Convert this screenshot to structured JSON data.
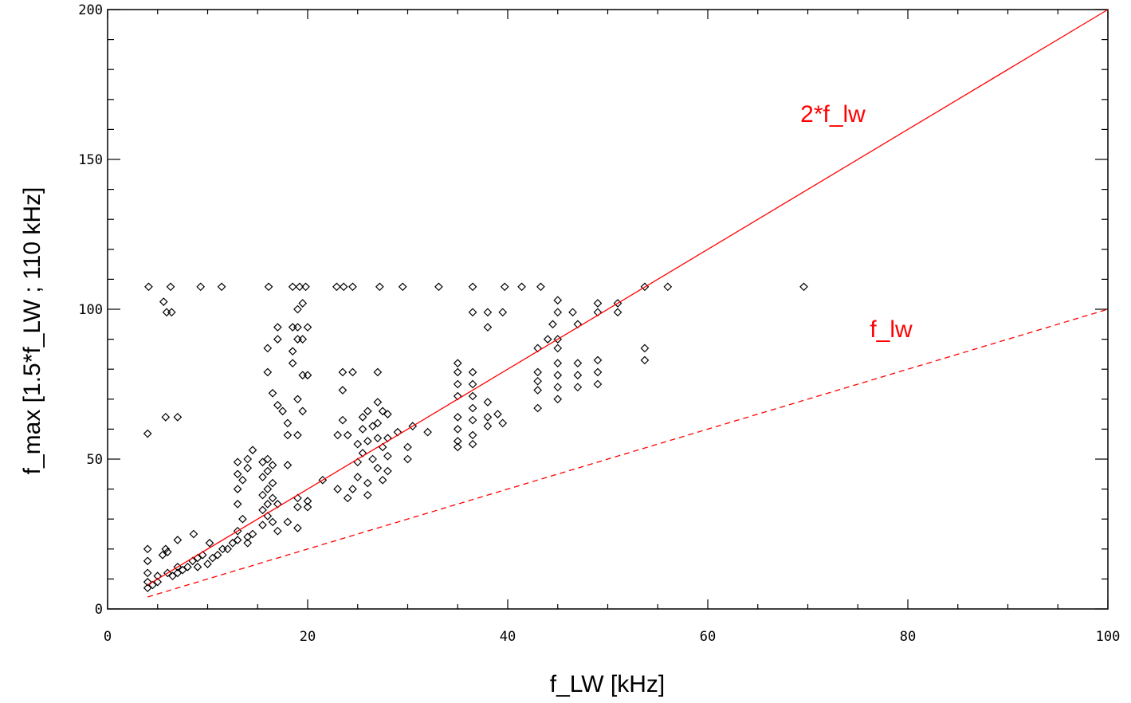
{
  "chart_data": {
    "type": "scatter",
    "xlabel": "f_LW [kHz]",
    "ylabel": "f_max [1.5*f_LW ; 110 kHz]",
    "xlim": [
      0,
      100
    ],
    "ylim": [
      0,
      200
    ],
    "xticks": [
      0,
      20,
      40,
      60,
      80,
      100
    ],
    "yticks": [
      0,
      50,
      100,
      150,
      200
    ],
    "xminorticks": [
      5,
      10,
      15,
      25,
      30,
      35,
      45,
      50,
      55,
      65,
      70,
      75,
      85,
      90,
      95
    ],
    "yminorticks": [
      10,
      20,
      30,
      40,
      60,
      70,
      80,
      90,
      110,
      120,
      130,
      140,
      160,
      170,
      180,
      190
    ],
    "series": [
      {
        "type": "scatter",
        "marker": "diamond",
        "color": "#000000",
        "x": [
          4.1,
          6.3,
          9.3,
          11.4,
          16.1,
          18.5,
          19.2,
          19.8,
          22.9,
          23.6,
          24.5,
          27.2,
          29.5,
          33.1,
          36.5,
          39.7,
          41.4,
          43.3,
          53.7,
          56,
          69.6,
          4,
          5.6,
          5.9,
          6.4,
          5.8,
          7,
          4,
          4,
          4,
          4,
          4,
          4.5,
          5,
          5,
          5.5,
          5.8,
          6,
          6,
          6.5,
          7,
          7,
          7,
          7.5,
          8,
          8.6,
          8.5,
          9,
          9,
          9.5,
          10,
          10.2,
          10.5,
          11,
          11.5,
          12,
          12.5,
          13,
          13,
          14,
          14,
          13,
          13,
          13,
          13,
          13.5,
          13.5,
          14,
          14,
          14.5,
          14.5,
          15.5,
          15.5,
          15.5,
          15.5,
          15.5,
          16,
          16,
          16,
          16,
          16,
          16.5,
          16.5,
          16.5,
          16.5,
          17,
          17,
          16,
          16,
          16.5,
          17,
          17,
          17,
          17.5,
          18,
          18,
          18,
          18,
          19,
          19,
          19,
          18.5,
          18.5,
          18.5,
          19,
          19,
          19,
          19.5,
          19.5,
          19.5,
          20,
          20,
          19,
          19.5,
          19,
          20,
          20,
          21.5,
          23,
          23,
          23.5,
          23.5,
          23.5,
          24,
          24,
          24.5,
          24.5,
          25,
          25,
          25,
          25.5,
          25.5,
          25.5,
          26,
          26,
          26,
          26,
          26.5,
          26.5,
          27,
          27,
          27,
          27,
          27,
          27.5,
          27.5,
          27.5,
          28,
          28,
          28,
          28,
          29,
          30,
          30,
          30.5,
          32,
          35,
          35,
          35,
          35,
          35,
          35,
          35,
          35,
          36.5,
          36.5,
          36.5,
          36.5,
          36.5,
          36.5,
          36.5,
          36.5,
          38,
          38,
          38,
          38,
          38,
          39,
          39.5,
          39.5,
          43,
          43,
          43,
          43,
          43,
          44.5,
          45,
          45,
          45,
          45,
          45,
          45,
          45,
          45,
          46.5,
          47,
          47,
          47,
          47,
          49,
          49,
          49,
          49,
          49,
          51,
          51,
          53.7,
          53.7,
          44
        ],
        "values": [
          107.5,
          107.5,
          107.5,
          107.5,
          107.5,
          107.5,
          107.5,
          107.5,
          107.5,
          107.5,
          107.5,
          107.5,
          107.5,
          107.5,
          107.5,
          107.5,
          107.5,
          107.5,
          107.5,
          107.5,
          107.5,
          58.5,
          102.5,
          99,
          99,
          64,
          64,
          20,
          16,
          12,
          9,
          7,
          8,
          9,
          11,
          18,
          20,
          19,
          12,
          11,
          12,
          23,
          14,
          13,
          14,
          25,
          16,
          17,
          14,
          18,
          15,
          22,
          17,
          18,
          20,
          20,
          22,
          23,
          26,
          22,
          24,
          35,
          40,
          45,
          49,
          30,
          43,
          47,
          50,
          53,
          25,
          28,
          33,
          38,
          44,
          49,
          31,
          35,
          40,
          46,
          50,
          29,
          37,
          42,
          48,
          35,
          26,
          87,
          79,
          72,
          68,
          94,
          90,
          66,
          62,
          58,
          48,
          29,
          34,
          27,
          37,
          94,
          86,
          82,
          100,
          94,
          90,
          102,
          90,
          78,
          94,
          78,
          70,
          66,
          58,
          36,
          34,
          43,
          40,
          58,
          79,
          73,
          63,
          37,
          58,
          79,
          40,
          55,
          49,
          44,
          64,
          60,
          52,
          66,
          56,
          42,
          38,
          61,
          50,
          79,
          69,
          62,
          57,
          47,
          66,
          54,
          43,
          65,
          57,
          51,
          46,
          59,
          54,
          50,
          61,
          59,
          82,
          79,
          75,
          71,
          64,
          60,
          56,
          54,
          79,
          75,
          71,
          67,
          63,
          58,
          55,
          99,
          99,
          94,
          69,
          64,
          61,
          65,
          99,
          62,
          87,
          79,
          76,
          73,
          67,
          95,
          103,
          99,
          90,
          87,
          82,
          78,
          74,
          70,
          99,
          95,
          82,
          78,
          74,
          102,
          99,
          83,
          79,
          75,
          102,
          99,
          87,
          83,
          90
        ]
      },
      {
        "type": "line",
        "name": "2*f_lw",
        "color": "#ff0000",
        "dash": false,
        "x": [
          4,
          100
        ],
        "values": [
          8,
          200
        ]
      },
      {
        "type": "line",
        "name": "f_lw",
        "color": "#ff0000",
        "dash": true,
        "x": [
          4,
          100
        ],
        "values": [
          4,
          100
        ]
      }
    ]
  }
}
